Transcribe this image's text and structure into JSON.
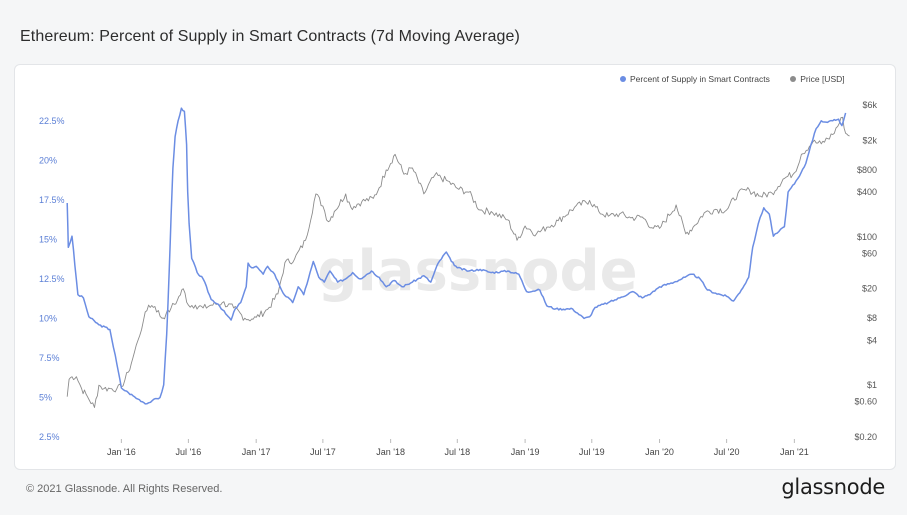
{
  "title": "Ethereum: Percent of Supply in Smart Contracts (7d Moving Average)",
  "footer": {
    "copyright": "© 2021 Glassnode. All Rights Reserved.",
    "brand": "glassnode"
  },
  "watermark": "glassnode",
  "colors": {
    "supply": "#6b8de3",
    "price": "#8c8c8c"
  },
  "chart_data": {
    "type": "line",
    "x_tick_labels": [
      "Jan '16",
      "Jul '16",
      "Jan '17",
      "Jul '17",
      "Jan '18",
      "Jul '18",
      "Jan '19",
      "Jul '19",
      "Jan '20",
      "Jul '20",
      "Jan '21"
    ],
    "y_left_ticks": [
      "2.5%",
      "5%",
      "7.5%",
      "10%",
      "12.5%",
      "15%",
      "17.5%",
      "20%",
      "22.5%"
    ],
    "y_left_range": [
      2.5,
      23.5
    ],
    "y_right_ticks": [
      "$0.20",
      "$0.60",
      "$1",
      "$4",
      "$8",
      "$20",
      "$60",
      "$100",
      "$400",
      "$800",
      "$2k",
      "$6k"
    ],
    "y_right_scale": "log",
    "y_right_range": [
      0.2,
      6000
    ],
    "legend_position": "top-right",
    "grid": false,
    "series": [
      {
        "name": "Percent of Supply in Smart Contracts",
        "axis": "left",
        "color": "#6b8de3",
        "points": [
          [
            "2015-08-07",
            17.3
          ],
          [
            "2015-08-10",
            14.5
          ],
          [
            "2015-08-20",
            15.2
          ],
          [
            "2015-09-05",
            11.5
          ],
          [
            "2015-09-20",
            11.3
          ],
          [
            "2015-10-05",
            10.1
          ],
          [
            "2015-11-01",
            9.6
          ],
          [
            "2015-12-01",
            9.3
          ],
          [
            "2015-12-20",
            7.1
          ],
          [
            "2016-01-01",
            5.6
          ],
          [
            "2016-01-20",
            5.3
          ],
          [
            "2016-02-15",
            4.9
          ],
          [
            "2016-03-10",
            4.6
          ],
          [
            "2016-03-25",
            4.8
          ],
          [
            "2016-04-15",
            5.0
          ],
          [
            "2016-04-25",
            5.8
          ],
          [
            "2016-05-03",
            9.0
          ],
          [
            "2016-05-10",
            13.0
          ],
          [
            "2016-05-15",
            16.5
          ],
          [
            "2016-05-20",
            19.5
          ],
          [
            "2016-05-26",
            21.5
          ],
          [
            "2016-06-03",
            22.5
          ],
          [
            "2016-06-12",
            23.3
          ],
          [
            "2016-06-20",
            23.1
          ],
          [
            "2016-06-26",
            21.0
          ],
          [
            "2016-06-29",
            18.0
          ],
          [
            "2016-07-03",
            16.0
          ],
          [
            "2016-07-10",
            13.8
          ],
          [
            "2016-07-25",
            12.9
          ],
          [
            "2016-08-10",
            12.5
          ],
          [
            "2016-09-01",
            11.2
          ],
          [
            "2016-09-20",
            10.9
          ],
          [
            "2016-10-10",
            10.3
          ],
          [
            "2016-10-25",
            9.9
          ],
          [
            "2016-11-05",
            10.6
          ],
          [
            "2016-11-20",
            11.0
          ],
          [
            "2016-12-05",
            12.0
          ],
          [
            "2016-12-10",
            13.5
          ],
          [
            "2016-12-20",
            13.2
          ],
          [
            "2017-01-01",
            13.3
          ],
          [
            "2017-01-20",
            12.8
          ],
          [
            "2017-02-01",
            13.3
          ],
          [
            "2017-02-20",
            12.8
          ],
          [
            "2017-03-15",
            11.6
          ],
          [
            "2017-04-10",
            11.0
          ],
          [
            "2017-04-25",
            12.0
          ],
          [
            "2017-05-10",
            11.5
          ],
          [
            "2017-06-05",
            13.6
          ],
          [
            "2017-06-20",
            12.6
          ],
          [
            "2017-07-05",
            12.3
          ],
          [
            "2017-07-20",
            13.0
          ],
          [
            "2017-08-10",
            12.3
          ],
          [
            "2017-09-01",
            12.5
          ],
          [
            "2017-09-20",
            12.9
          ],
          [
            "2017-10-10",
            12.5
          ],
          [
            "2017-11-10",
            13.0
          ],
          [
            "2017-12-01",
            12.6
          ],
          [
            "2017-12-20",
            12.0
          ],
          [
            "2018-01-10",
            12.4
          ],
          [
            "2018-02-01",
            12.0
          ],
          [
            "2018-03-01",
            12.3
          ],
          [
            "2018-04-01",
            12.7
          ],
          [
            "2018-04-20",
            12.3
          ],
          [
            "2018-05-10",
            13.5
          ],
          [
            "2018-06-01",
            14.2
          ],
          [
            "2018-06-15",
            13.6
          ],
          [
            "2018-07-01",
            13.2
          ],
          [
            "2018-08-01",
            13.0
          ],
          [
            "2018-09-01",
            13.1
          ],
          [
            "2018-10-01",
            12.9
          ],
          [
            "2018-11-15",
            13.0
          ],
          [
            "2018-12-15",
            12.8
          ],
          [
            "2019-01-05",
            11.7
          ],
          [
            "2019-02-10",
            11.8
          ],
          [
            "2019-03-01",
            10.8
          ],
          [
            "2019-03-25",
            10.6
          ],
          [
            "2019-05-10",
            10.6
          ],
          [
            "2019-06-10",
            10.0
          ],
          [
            "2019-06-25",
            10.1
          ],
          [
            "2019-07-10",
            10.7
          ],
          [
            "2019-08-15",
            11.0
          ],
          [
            "2019-09-15",
            11.3
          ],
          [
            "2019-10-20",
            11.7
          ],
          [
            "2019-11-15",
            11.3
          ],
          [
            "2019-12-10",
            11.6
          ],
          [
            "2020-01-01",
            12.0
          ],
          [
            "2020-02-10",
            12.3
          ],
          [
            "2020-03-10",
            12.6
          ],
          [
            "2020-03-30",
            12.8
          ],
          [
            "2020-04-20",
            12.5
          ],
          [
            "2020-05-10",
            11.8
          ],
          [
            "2020-06-01",
            11.6
          ],
          [
            "2020-07-01",
            11.4
          ],
          [
            "2020-07-20",
            11.1
          ],
          [
            "2020-08-10",
            11.8
          ],
          [
            "2020-08-30",
            12.6
          ],
          [
            "2020-09-10",
            14.5
          ],
          [
            "2020-09-25",
            16.0
          ],
          [
            "2020-10-10",
            17.0
          ],
          [
            "2020-10-25",
            16.6
          ],
          [
            "2020-11-05",
            15.2
          ],
          [
            "2020-11-20",
            15.5
          ],
          [
            "2020-12-05",
            15.8
          ],
          [
            "2020-12-15",
            18.0
          ],
          [
            "2021-01-01",
            18.5
          ],
          [
            "2021-01-15",
            19.0
          ],
          [
            "2021-02-01",
            19.8
          ],
          [
            "2021-02-15",
            21.0
          ],
          [
            "2021-03-01",
            22.0
          ],
          [
            "2021-03-15",
            22.5
          ],
          [
            "2021-04-01",
            22.4
          ],
          [
            "2021-04-15",
            22.5
          ],
          [
            "2021-05-01",
            22.6
          ],
          [
            "2021-05-10",
            22.2
          ],
          [
            "2021-05-20",
            23.0
          ]
        ]
      },
      {
        "name": "Price [USD]",
        "axis": "right",
        "color": "#8c8c8c",
        "points": [
          [
            "2015-08-07",
            0.7
          ],
          [
            "2015-08-12",
            1.2
          ],
          [
            "2015-08-20",
            1.3
          ],
          [
            "2015-09-01",
            1.3
          ],
          [
            "2015-09-15",
            0.9
          ],
          [
            "2015-10-01",
            0.7
          ],
          [
            "2015-10-20",
            0.5
          ],
          [
            "2015-11-01",
            1.0
          ],
          [
            "2015-11-15",
            0.9
          ],
          [
            "2015-12-01",
            0.9
          ],
          [
            "2015-12-20",
            0.9
          ],
          [
            "2016-01-01",
            0.95
          ],
          [
            "2016-01-20",
            1.5
          ],
          [
            "2016-02-01",
            2.3
          ],
          [
            "2016-02-15",
            4.0
          ],
          [
            "2016-03-01",
            7.5
          ],
          [
            "2016-03-15",
            12.0
          ],
          [
            "2016-04-01",
            11.5
          ],
          [
            "2016-04-20",
            8.0
          ],
          [
            "2016-05-01",
            9.0
          ],
          [
            "2016-05-15",
            11.0
          ],
          [
            "2016-06-01",
            14.0
          ],
          [
            "2016-06-17",
            20.0
          ],
          [
            "2016-07-01",
            12.0
          ],
          [
            "2016-07-20",
            12.0
          ],
          [
            "2016-08-10",
            11.0
          ],
          [
            "2016-09-01",
            12.0
          ],
          [
            "2016-10-01",
            13.0
          ],
          [
            "2016-11-01",
            11.0
          ],
          [
            "2016-12-01",
            8.0
          ],
          [
            "2016-12-20",
            7.8
          ],
          [
            "2017-01-01",
            8.2
          ],
          [
            "2017-02-01",
            10.5
          ],
          [
            "2017-03-01",
            17.0
          ],
          [
            "2017-03-20",
            45.0
          ],
          [
            "2017-04-15",
            50.0
          ],
          [
            "2017-05-15",
            90.0
          ],
          [
            "2017-06-12",
            380.0
          ],
          [
            "2017-07-01",
            260.0
          ],
          [
            "2017-07-16",
            160.0
          ],
          [
            "2017-08-01",
            220.0
          ],
          [
            "2017-09-01",
            380.0
          ],
          [
            "2017-09-15",
            250.0
          ],
          [
            "2017-10-15",
            300.0
          ],
          [
            "2017-11-15",
            330.0
          ],
          [
            "2017-12-01",
            460.0
          ],
          [
            "2017-12-20",
            800.0
          ],
          [
            "2018-01-13",
            1300.0
          ],
          [
            "2018-02-06",
            700.0
          ],
          [
            "2018-03-01",
            850.0
          ],
          [
            "2018-04-01",
            380.0
          ],
          [
            "2018-05-01",
            680.0
          ],
          [
            "2018-06-01",
            580.0
          ],
          [
            "2018-07-01",
            450.0
          ],
          [
            "2018-08-01",
            400.0
          ],
          [
            "2018-09-01",
            230.0
          ],
          [
            "2018-10-01",
            220.0
          ],
          [
            "2018-11-15",
            170.0
          ],
          [
            "2018-12-10",
            90.0
          ],
          [
            "2019-01-01",
            140.0
          ],
          [
            "2019-02-01",
            110.0
          ],
          [
            "2019-03-01",
            135.0
          ],
          [
            "2019-04-01",
            165.0
          ],
          [
            "2019-05-15",
            250.0
          ],
          [
            "2019-06-25",
            310.0
          ],
          [
            "2019-07-20",
            220.0
          ],
          [
            "2019-08-15",
            190.0
          ],
          [
            "2019-09-15",
            205.0
          ],
          [
            "2019-10-15",
            180.0
          ],
          [
            "2019-11-15",
            185.0
          ],
          [
            "2019-12-15",
            130.0
          ],
          [
            "2020-01-01",
            130.0
          ],
          [
            "2020-02-15",
            270.0
          ],
          [
            "2020-03-12",
            110.0
          ],
          [
            "2020-04-01",
            135.0
          ],
          [
            "2020-05-01",
            210.0
          ],
          [
            "2020-06-01",
            235.0
          ],
          [
            "2020-07-01",
            230.0
          ],
          [
            "2020-08-01",
            390.0
          ],
          [
            "2020-09-01",
            430.0
          ],
          [
            "2020-10-01",
            355.0
          ],
          [
            "2020-11-01",
            390.0
          ],
          [
            "2020-12-01",
            600.0
          ],
          [
            "2021-01-01",
            730.0
          ],
          [
            "2021-01-20",
            1300.0
          ],
          [
            "2021-02-20",
            1900.0
          ],
          [
            "2021-03-15",
            1800.0
          ],
          [
            "2021-04-15",
            2400.0
          ],
          [
            "2021-05-12",
            4100.0
          ],
          [
            "2021-05-20",
            2500.0
          ],
          [
            "2021-05-31",
            2300.0
          ]
        ]
      }
    ]
  }
}
